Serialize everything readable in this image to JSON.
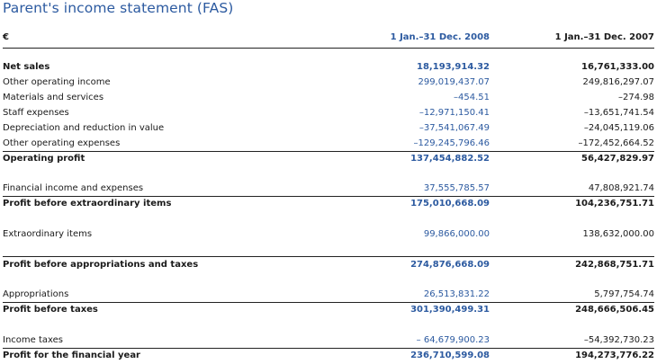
{
  "title": "Parent's income statement (FAS)",
  "header": {
    "currency": "€",
    "col2008": "1 Jan.–31 Dec. 2008",
    "col2007": "1 Jan.–31 Dec. 2007"
  },
  "rows": [
    {
      "label": "Net sales",
      "v2008": "18,193,914.32",
      "v2007": "16,761,333.00"
    },
    {
      "label": "Other operating income",
      "v2008": "299,019,437.07",
      "v2007": "249,816,297.07"
    },
    {
      "label": "Materials and services",
      "v2008": "–454.51",
      "v2007": "–274.98"
    },
    {
      "label": "Staff expenses",
      "v2008": "–12,971,150.41",
      "v2007": "–13,651,741.54"
    },
    {
      "label": "Depreciation and reduction in value",
      "v2008": "–37,541,067.49",
      "v2007": "–24,045,119.06"
    },
    {
      "label": "Other operating expenses",
      "v2008": "–129,245,796.46",
      "v2007": "–172,452,664.52"
    },
    {
      "label": "Operating profit",
      "v2008": "137,454,882.52",
      "v2007": "56,427,829.97"
    },
    {
      "label": "Financial income and expenses",
      "v2008": "37,555,785.57",
      "v2007": "47,808,921.74"
    },
    {
      "label": "Profit before extraordinary items",
      "v2008": "175,010,668.09",
      "v2007": "104,236,751.71"
    },
    {
      "label": "Extraordinary items",
      "v2008": "99,866,000.00",
      "v2007": "138,632,000.00"
    },
    {
      "label": "Profit before appropriations and taxes",
      "v2008": "274,876,668.09",
      "v2007": "242,868,751.71"
    },
    {
      "label": "Appropriations",
      "v2008": "26,513,831.22",
      "v2007": "5,797,754.74"
    },
    {
      "label": "Profit before taxes",
      "v2008": "301,390,499.31",
      "v2007": "248,666,506.45"
    },
    {
      "label": "Income taxes",
      "v2008": "– 64,679,900.23",
      "v2007": "–54,392,730.23"
    },
    {
      "label": "Profit for the financial year",
      "v2008": "236,710,599.08",
      "v2007": "194,273,776.22"
    }
  ]
}
